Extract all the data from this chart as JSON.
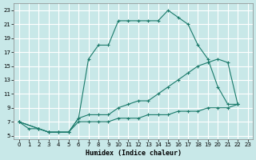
{
  "xlabel": "Humidex (Indice chaleur)",
  "bg_color": "#c8e8e8",
  "line_color": "#1a7a6a",
  "grid_color": "#ffffff",
  "xlim": [
    -0.5,
    23.5
  ],
  "ylim": [
    4.5,
    24
  ],
  "xticks": [
    0,
    1,
    2,
    3,
    4,
    5,
    6,
    7,
    8,
    9,
    10,
    11,
    12,
    13,
    14,
    15,
    16,
    17,
    18,
    19,
    20,
    21,
    22,
    23
  ],
  "yticks": [
    5,
    7,
    9,
    11,
    13,
    15,
    17,
    19,
    21,
    23
  ],
  "line1_x": [
    0,
    1,
    2,
    3,
    4,
    5,
    6,
    7,
    8,
    9,
    10,
    11,
    12,
    13,
    14,
    15,
    16,
    17,
    18,
    19,
    20,
    21,
    22
  ],
  "line1_y": [
    7,
    6,
    6,
    5.5,
    5.5,
    5.5,
    7.5,
    16,
    18,
    18,
    21.5,
    21.5,
    21.5,
    21.5,
    21.5,
    23,
    22,
    21,
    18,
    16,
    12,
    9.5,
    9.5
  ],
  "line2_x": [
    0,
    2,
    3,
    4,
    5,
    6,
    7,
    8,
    9,
    10,
    11,
    12,
    13,
    14,
    15,
    16,
    17,
    18,
    19,
    20,
    21,
    22
  ],
  "line2_y": [
    7,
    6,
    5.5,
    5.5,
    5.5,
    7.5,
    8,
    8,
    8,
    9,
    9.5,
    10,
    10,
    11,
    12,
    13,
    14,
    15,
    15.5,
    16,
    15.5,
    9.5
  ],
  "line3_x": [
    0,
    2,
    3,
    4,
    5,
    6,
    7,
    8,
    9,
    10,
    11,
    12,
    13,
    14,
    15,
    16,
    17,
    18,
    19,
    20,
    21,
    22
  ],
  "line3_y": [
    7,
    6,
    5.5,
    5.5,
    5.5,
    7,
    7,
    7,
    7,
    7.5,
    7.5,
    7.5,
    8,
    8,
    8,
    8.5,
    8.5,
    8.5,
    9,
    9,
    9,
    9.5
  ]
}
